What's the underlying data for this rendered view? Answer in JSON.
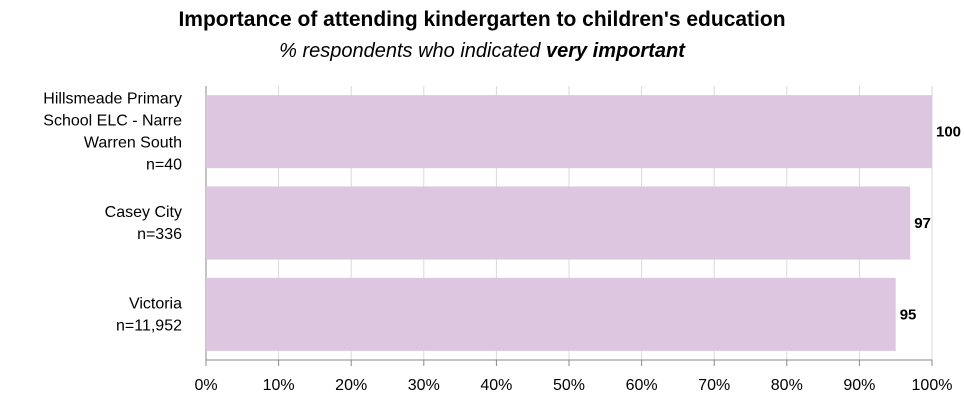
{
  "chart_data": {
    "type": "bar",
    "orientation": "horizontal",
    "title": "Importance of attending kindergarten to children's education",
    "subtitle_prefix": "% respondents who indicated ",
    "subtitle_emphasis": "very important",
    "categories": [
      [
        "Hillsmeade Primary",
        "School ELC - Narre",
        "Warren South",
        "n=40"
      ],
      [
        "Casey City",
        "n=336"
      ],
      [
        "Victoria",
        "n=11,952"
      ]
    ],
    "values": [
      100,
      97,
      95
    ],
    "data_labels": [
      "100",
      "97",
      "95"
    ],
    "xlim": [
      0,
      100
    ],
    "x_ticks": [
      "0%",
      "10%",
      "20%",
      "30%",
      "40%",
      "50%",
      "60%",
      "70%",
      "80%",
      "90%",
      "100%"
    ],
    "grid": true,
    "bar_color": "#dcc6e0",
    "grid_color": "#d9d9d9"
  }
}
